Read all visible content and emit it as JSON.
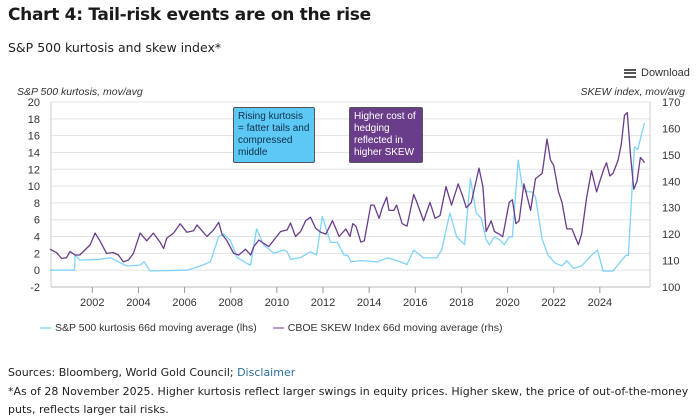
{
  "header": {
    "title": "Chart 4: Tail-risk events are on the rise",
    "subtitle": "S&P 500 kurtosis and skew index*",
    "download_label": "Download",
    "download_icon": "hamburger-menu-icon"
  },
  "annotations": {
    "kurtosis_note": "Rising kurtosis = fatter tails and compressed middle",
    "skew_note": "Higher cost of hedging reflected in higher SKEW"
  },
  "footer": {
    "sources": "Sources: Bloomberg, World Gold Council; ",
    "disclaimer_link": "Disclaimer",
    "footnote": "*As of 28 November 2025. Higher kurtosis reflect larger swings in equity prices. Higher skew, the price of out-of-the-money puts, reflects larger tail risks."
  },
  "colors": {
    "kurtosis": "#7fd3f7",
    "skew": "#6a3d8a",
    "grid": "#e3e3e3"
  },
  "chart_data": {
    "type": "line",
    "title": "Chart 4: Tail-risk events are on the rise",
    "subtitle": "S&P 500 kurtosis and skew index*",
    "xlabel": "",
    "ylabel_left": "S&P 500 kurtosis, mov/avg",
    "ylabel_right": "SKEW index, mov/avg",
    "xlim": [
      2000.2,
      2025.95
    ],
    "ylim_left": [
      -2,
      20
    ],
    "ylim_right": [
      100,
      170
    ],
    "x_ticks": [
      "2002",
      "2004",
      "2006",
      "2008",
      "2010",
      "2012",
      "2014",
      "2016",
      "2018",
      "2020",
      "2022",
      "2024"
    ],
    "y_ticks_left": [
      "-2",
      "0",
      "2",
      "4",
      "6",
      "8",
      "10",
      "12",
      "14",
      "16",
      "18",
      "20"
    ],
    "y_ticks_right": [
      "100",
      "110",
      "120",
      "130",
      "140",
      "150",
      "160",
      "170"
    ],
    "grid": true,
    "legend_position": "bottom",
    "series": [
      {
        "name": "S&P 500 kurtosis 66d moving average (lhs)",
        "axis": "left",
        "x": [
          2000.16,
          2001.23,
          2001.26,
          2001.46,
          2002.33,
          2002.77,
          2003.49,
          2004.07,
          2004.25,
          2004.51,
          2006.1,
          2006.68,
          2007.12,
          2007.48,
          2007.7,
          2007.99,
          2008.28,
          2008.71,
          2008.86,
          2009.12,
          2009.43,
          2009.87,
          2010.3,
          2010.45,
          2010.59,
          2011.03,
          2011.46,
          2011.72,
          2011.97,
          2012.33,
          2012.62,
          2012.91,
          2013.07,
          2013.21,
          2013.64,
          2014.36,
          2014.79,
          2015.21,
          2015.64,
          2015.93,
          2016.36,
          2016.93,
          2017.14,
          2017.5,
          2017.79,
          2018.14,
          2018.39,
          2018.64,
          2018.86,
          2019.07,
          2019.21,
          2019.43,
          2019.64,
          2019.86,
          2020.07,
          2020.21,
          2020.46,
          2020.64,
          2020.86,
          2021.07,
          2021.21,
          2021.5,
          2021.76,
          2022.07,
          2022.36,
          2022.57,
          2022.86,
          2023.21,
          2023.64,
          2023.9,
          2024.14,
          2024.57,
          2024.93,
          2025.14,
          2025.24,
          2025.5,
          2025.64,
          2025.93
        ],
        "y": [
          0,
          0,
          1.8,
          1.2,
          1.3,
          1.5,
          0.5,
          0.6,
          1.0,
          -0.1,
          0,
          0.5,
          1.0,
          4.0,
          4.3,
          3.5,
          1.5,
          0.8,
          0.6,
          4.9,
          3.0,
          2.0,
          2.4,
          2.2,
          1.3,
          1.5,
          2.2,
          1.8,
          6.4,
          3.3,
          3.3,
          1.8,
          1.77,
          0.99,
          1.14,
          0.99,
          1.46,
          1.14,
          0.67,
          2.4,
          1.46,
          1.46,
          2.4,
          6.8,
          3.97,
          3.03,
          10.89,
          6.8,
          6.17,
          3.66,
          3.03,
          3.97,
          3.66,
          3.03,
          3.97,
          3.97,
          13.09,
          9.94,
          9.31,
          9.31,
          8.69,
          3.66,
          1.77,
          0.83,
          0.51,
          1.14,
          0.2,
          0.51,
          1.77,
          2.4,
          -0.11,
          -0.11,
          1.14,
          1.77,
          1.77,
          14.66,
          14.34,
          17.49
        ]
      },
      {
        "name": "CBOE SKEW Index 66d moving average (rhs)",
        "axis": "right",
        "x": [
          2000.16,
          2000.45,
          2000.67,
          2000.88,
          2001.03,
          2001.25,
          2001.46,
          2001.68,
          2001.9,
          2002.12,
          2002.33,
          2002.62,
          2002.91,
          2003.13,
          2003.35,
          2003.57,
          2003.78,
          2004.07,
          2004.36,
          2004.65,
          2004.94,
          2005.09,
          2005.23,
          2005.52,
          2005.81,
          2006.1,
          2006.39,
          2006.54,
          2006.75,
          2006.97,
          2007.26,
          2007.48,
          2007.62,
          2007.84,
          2008.13,
          2008.35,
          2008.64,
          2008.86,
          2009.0,
          2009.22,
          2009.43,
          2009.65,
          2009.87,
          2010.16,
          2010.45,
          2010.59,
          2010.81,
          2011.03,
          2011.25,
          2011.46,
          2011.68,
          2011.9,
          2012.12,
          2012.41,
          2012.7,
          2012.99,
          2013.17,
          2013.29,
          2013.43,
          2013.64,
          2013.79,
          2014.07,
          2014.21,
          2014.43,
          2014.57,
          2014.76,
          2014.86,
          2015.07,
          2015.19,
          2015.43,
          2015.64,
          2015.93,
          2016.07,
          2016.36,
          2016.64,
          2016.86,
          2017.07,
          2017.33,
          2017.57,
          2017.86,
          2018.07,
          2018.21,
          2018.43,
          2018.76,
          2018.93,
          2019.07,
          2019.29,
          2019.43,
          2019.64,
          2019.79,
          2020.07,
          2020.21,
          2020.36,
          2020.5,
          2020.71,
          2021.0,
          2021.21,
          2021.5,
          2021.71,
          2021.86,
          2022.0,
          2022.21,
          2022.36,
          2022.57,
          2022.79,
          2023.07,
          2023.21,
          2023.43,
          2023.64,
          2023.86,
          2024.0,
          2024.19,
          2024.29,
          2024.43,
          2024.57,
          2024.79,
          2024.93,
          2025.07,
          2025.19,
          2025.33,
          2025.47,
          2025.61,
          2025.76,
          2025.86,
          2025.93
        ],
        "y": [
          114.3,
          113.0,
          110.8,
          111.1,
          113.4,
          112.1,
          112.1,
          114.0,
          115.9,
          120.4,
          117.5,
          112.7,
          113.0,
          112.1,
          109.5,
          110.2,
          112.7,
          120.4,
          117.5,
          120.4,
          116.9,
          114.6,
          118.5,
          120.4,
          123.9,
          120.7,
          121.3,
          123.5,
          121.3,
          119.1,
          121.6,
          124.5,
          120.0,
          117.5,
          112.7,
          112.1,
          114.3,
          112.1,
          115.3,
          117.8,
          116.5,
          115.3,
          117.8,
          121.0,
          121.6,
          124.2,
          119.1,
          121.0,
          125.1,
          126.4,
          122.3,
          120.7,
          120.0,
          125.1,
          119.1,
          122.0,
          119.1,
          124,
          123,
          117,
          117.5,
          131,
          131,
          126,
          130,
          134,
          129,
          129,
          131,
          124,
          123,
          135,
          132,
          125,
          132,
          126,
          127,
          138,
          131,
          139,
          134,
          130,
          132,
          145,
          138,
          121,
          125,
          121,
          120,
          119,
          132,
          133,
          124,
          125,
          139,
          129,
          141,
          143,
          156,
          148,
          146,
          136,
          132,
          122,
          122,
          116,
          120,
          134,
          144,
          136,
          140,
          145,
          147,
          142,
          143,
          148,
          154,
          165,
          166,
          150,
          137,
          140,
          149,
          148,
          147
        ]
      }
    ]
  }
}
